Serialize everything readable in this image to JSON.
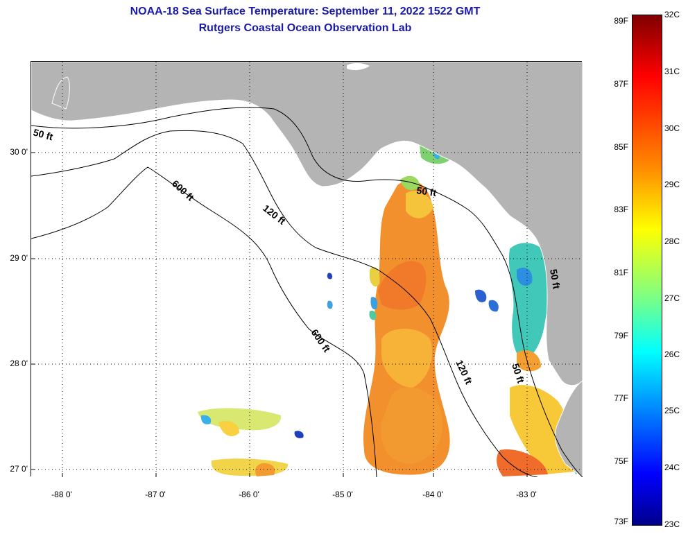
{
  "title_line1": "NOAA-18 Sea Surface Temperature:  September 11, 2022 1522 GMT",
  "title_line2": "Rutgers Coastal Ocean Observation Lab",
  "latitude_labels": [
    "30 0'",
    "29 0'",
    "28 0'",
    "27 0'"
  ],
  "longitude_labels": [
    "-88 0'",
    "-87 0'",
    "-86 0'",
    "-85 0'",
    "-84 0'",
    "-83 0'"
  ],
  "contour_labels": [
    "50 ft",
    "600 ft",
    "120 ft",
    "50 ft",
    "600 ft",
    "120 ft",
    "50 ft",
    "50 ft"
  ],
  "colorbar": {
    "fahrenheit_labels": [
      "89F",
      "87F",
      "85F",
      "83F",
      "81F",
      "79F",
      "77F",
      "75F",
      "73F"
    ],
    "celsius_labels": [
      "32C",
      "31C",
      "30C",
      "29C",
      "28C",
      "27C",
      "26C",
      "25C",
      "24C",
      "23C"
    ]
  },
  "colors": {
    "title": "#1a1aa8",
    "land": "#b4b4b4",
    "no_data": "#ffffff",
    "sst_warm": "#f07828",
    "sst_mid": "#f8c030",
    "sst_cool": "#30c8e0"
  }
}
